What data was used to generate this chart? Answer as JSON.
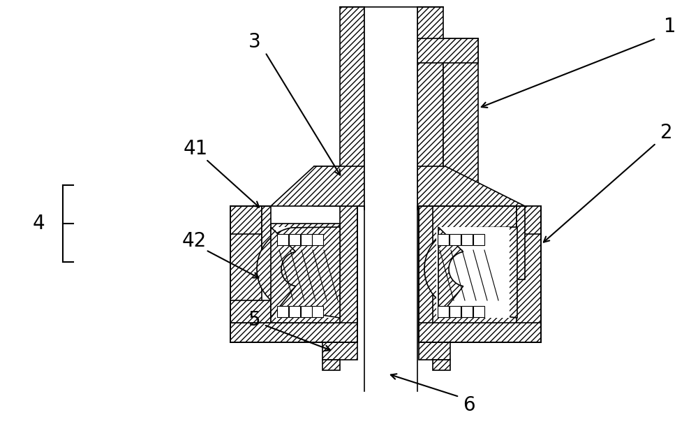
{
  "bg_color": "#ffffff",
  "line_color": "#000000",
  "fig_width": 10.0,
  "fig_height": 6.37,
  "dpi": 100,
  "lw": 1.2,
  "hatch": "////",
  "fontsize": 20
}
